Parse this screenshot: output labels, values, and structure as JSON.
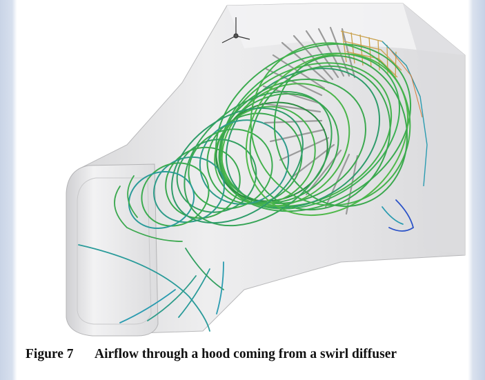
{
  "figure": {
    "number_label": "Figure 7",
    "caption_text": "Airflow through a hood coming from a swirl diffuser",
    "colors": {
      "streamline_green": "#3aa84e",
      "streamline_dark": "#2c8c42",
      "streamline_cyan": "#2a9bb0",
      "streamline_blue": "#2a52c8",
      "streamline_yellow": "#c9b23a",
      "streamline_orange": "#d87a3a",
      "diffuser_vane": "#9a9a9a",
      "hood_surface": "#e9e9ea"
    }
  }
}
